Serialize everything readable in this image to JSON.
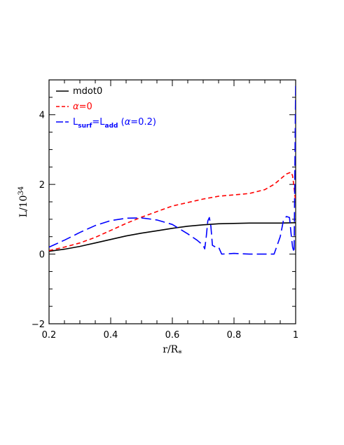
{
  "chart_data": {
    "type": "line",
    "title": "",
    "xlabel": {
      "main": "r/R",
      "sub": "*"
    },
    "ylabel": {
      "main": "L/10",
      "sup": "34"
    },
    "xlim": [
      0.2,
      1.0
    ],
    "ylim": [
      -2,
      5
    ],
    "x_ticks": [
      0.2,
      0.4,
      0.6,
      0.8,
      1.0
    ],
    "x_tick_labels": [
      "0.2",
      "0.4",
      "0.6",
      "0.8",
      "1"
    ],
    "y_ticks": [
      -2,
      0,
      2,
      4
    ],
    "y_tick_labels": [
      "−2",
      "0",
      "2",
      "4"
    ],
    "grid": false,
    "legend_position": "top-left",
    "series": [
      {
        "name": "mdot0",
        "color": "#000000",
        "dash": "solid",
        "x": [
          0.2,
          0.25,
          0.3,
          0.35,
          0.4,
          0.45,
          0.5,
          0.55,
          0.6,
          0.65,
          0.7,
          0.75,
          0.8,
          0.85,
          0.9,
          0.95,
          1.0
        ],
        "y": [
          0.08,
          0.14,
          0.22,
          0.32,
          0.42,
          0.52,
          0.6,
          0.67,
          0.74,
          0.8,
          0.84,
          0.87,
          0.88,
          0.89,
          0.89,
          0.89,
          0.9
        ]
      },
      {
        "name_parts": [
          "α",
          "=0"
        ],
        "color": "#ff0000",
        "dash": "dashed",
        "x": [
          0.2,
          0.25,
          0.3,
          0.35,
          0.4,
          0.45,
          0.5,
          0.55,
          0.6,
          0.65,
          0.7,
          0.75,
          0.8,
          0.85,
          0.9,
          0.93,
          0.95,
          0.97,
          0.985,
          0.99,
          0.995,
          1.0
        ],
        "y": [
          0.1,
          0.2,
          0.32,
          0.48,
          0.68,
          0.88,
          1.06,
          1.22,
          1.38,
          1.48,
          1.58,
          1.66,
          1.7,
          1.74,
          1.85,
          2.0,
          2.15,
          2.3,
          2.35,
          2.25,
          1.9,
          1.5
        ]
      },
      {
        "name_parts": [
          "L",
          "surf",
          "=L",
          "add",
          " (",
          "α",
          "=0.2)"
        ],
        "color": "#0000ff",
        "dash": "longdash",
        "x": [
          0.2,
          0.25,
          0.3,
          0.35,
          0.4,
          0.45,
          0.5,
          0.55,
          0.6,
          0.65,
          0.68,
          0.7,
          0.705,
          0.71,
          0.715,
          0.72,
          0.725,
          0.73,
          0.74,
          0.75,
          0.76,
          0.8,
          0.85,
          0.9,
          0.93,
          0.95,
          0.96,
          0.97,
          0.98,
          0.985,
          0.99,
          0.995,
          1.0
        ],
        "y": [
          0.2,
          0.4,
          0.62,
          0.82,
          0.96,
          1.03,
          1.04,
          0.98,
          0.85,
          0.58,
          0.4,
          0.25,
          0.15,
          0.5,
          0.95,
          1.05,
          0.8,
          0.25,
          0.2,
          0.2,
          0.0,
          0.02,
          0.0,
          0.0,
          0.0,
          0.5,
          0.95,
          1.08,
          1.05,
          0.6,
          0.2,
          0.05,
          4.9
        ]
      }
    ]
  }
}
